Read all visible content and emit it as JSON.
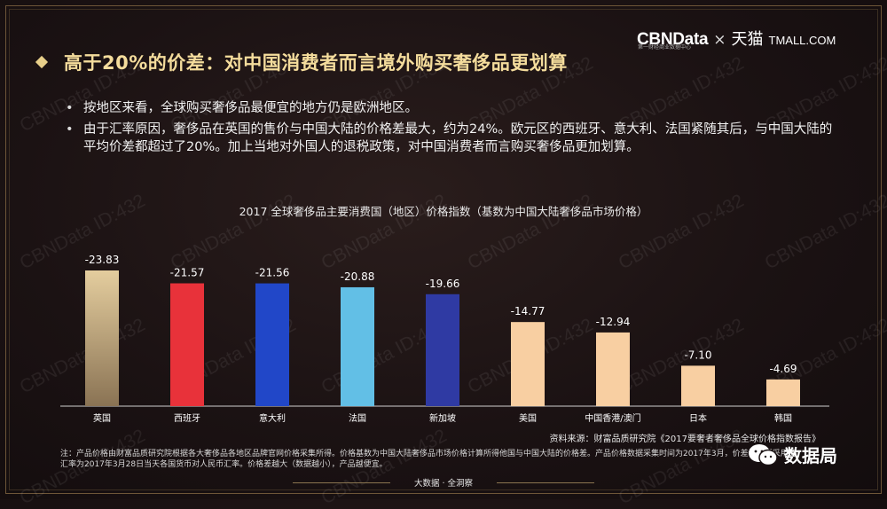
{
  "brand": {
    "cbn": "CBNData",
    "times": "×",
    "tmall": "天猫",
    "tmall_com": "TMALL.COM",
    "sub": "第一财经商业数据中心"
  },
  "header": {
    "title": "高于20%的价差：对中国消费者而言境外购买奢侈品更划算"
  },
  "bullets": [
    "按地区来看，全球购买奢侈品最便宜的地方仍是欧洲地区。",
    "由于汇率原因，奢侈品在英国的售价与中国大陆的价格差最大，约为24%。欧元区的西班牙、意大利、法国紧随其后，与中国大陆的平均价差都超过了20%。加上当地对外国人的退税政策，对中国消费者而言购买奢侈品更加划算。"
  ],
  "chart_data": {
    "type": "bar",
    "title": "2017 全球奢侈品主要消费国（地区）价格指数（基数为中国大陆奢侈品市场价格）",
    "categories": [
      "英国",
      "西班牙",
      "意大利",
      "法国",
      "新加坡",
      "美国",
      "中国香港/澳门",
      "日本",
      "韩国"
    ],
    "values": [
      -23.83,
      -21.57,
      -21.56,
      -20.88,
      -19.66,
      -14.77,
      -12.94,
      -7.1,
      -4.69
    ],
    "value_labels": [
      "-23.83",
      "-21.57",
      "-21.56",
      "-20.88",
      "-19.66",
      "-14.77",
      "-12.94",
      "-7.10",
      "-4.69"
    ],
    "colors": [
      "#dcc49a",
      "#e8323a",
      "#2147c8",
      "#62bfe6",
      "#2f3aa3",
      "#f8cfa2",
      "#f8cfa2",
      "#f8cfa2",
      "#f8cfa2"
    ],
    "bar_colors_note": "bars drawn downward magnitude upward from baseline",
    "grid": false,
    "legend": "none"
  },
  "source": "资料来源：财富品质研究院《2017要奢者奢侈品全球价格指数报告》",
  "note": "注：产品价格由财富品质研究院根据各大奢侈品各地区品牌官网价格采集所得。价格基数为中国大陆奢侈品市场价格计算所得他国与中国大陆的价格差。产品价格数据采集时间为2017年3月，价差计算所采用的汇率为2017年3月28日当天各国货币对人民币汇率。价格差越大（数据越小），产品越便宜。",
  "footer": {
    "text": "大数据 · 全洞察"
  },
  "wechat": {
    "name": "数据局"
  },
  "watermark": {
    "text": "CBNData ID:432"
  }
}
